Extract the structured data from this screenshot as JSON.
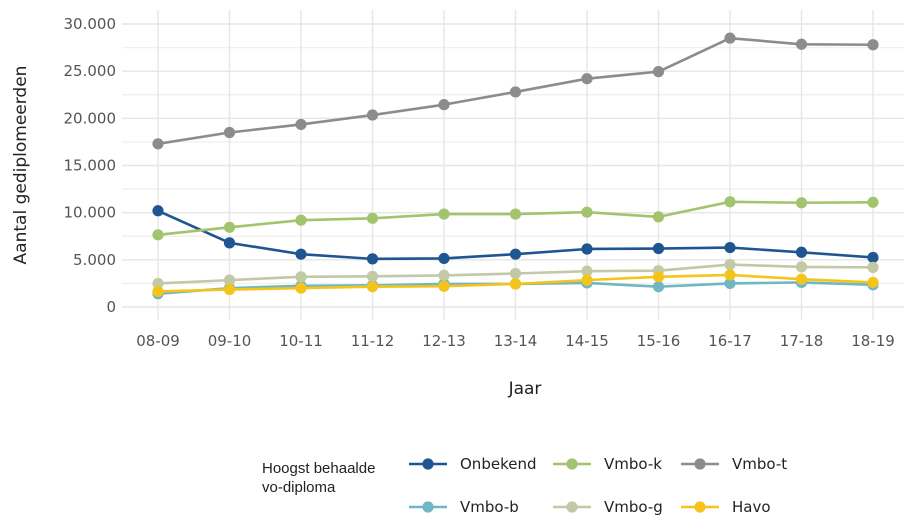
{
  "chart_data": {
    "type": "line",
    "title": "",
    "xlabel": "Jaar",
    "ylabel": "Aantal gediplomeerden",
    "categories": [
      "08-09",
      "09-10",
      "10-11",
      "11-12",
      "12-13",
      "13-14",
      "14-15",
      "15-16",
      "16-17",
      "17-18",
      "18-19"
    ],
    "ylim": [
      0,
      30000
    ],
    "yticks": [
      0,
      5000,
      10000,
      15000,
      20000,
      25000,
      30000
    ],
    "ytick_labels": [
      "0",
      "5.000",
      "10.000",
      "15.000",
      "20.000",
      "25.000",
      "30.000"
    ],
    "grid": true,
    "legend": {
      "title_lines": [
        "Hoogst behaalde",
        "vo-diploma"
      ],
      "placement": "bottom"
    },
    "series": [
      {
        "name": "Onbekend",
        "color": "#1f5591",
        "values": [
          10200,
          6800,
          5600,
          5100,
          5150,
          5600,
          6150,
          6200,
          6300,
          5800,
          5250
        ]
      },
      {
        "name": "Vmbo-k",
        "color": "#a3c46e",
        "values": [
          7650,
          8450,
          9200,
          9400,
          9850,
          9850,
          10050,
          9550,
          11150,
          11050,
          11100
        ]
      },
      {
        "name": "Vmbo-t",
        "color": "#8c8c8c",
        "values": [
          17300,
          18500,
          19350,
          20350,
          21450,
          22800,
          24200,
          24950,
          28500,
          27850,
          27800
        ]
      },
      {
        "name": "Vmbo-b",
        "color": "#6fb7c4",
        "values": [
          1400,
          2000,
          2250,
          2300,
          2450,
          2450,
          2550,
          2150,
          2500,
          2600,
          2350
        ]
      },
      {
        "name": "Vmbo-g",
        "color": "#c2c9a6",
        "values": [
          2500,
          2850,
          3200,
          3250,
          3350,
          3550,
          3800,
          3850,
          4500,
          4250,
          4200
        ]
      },
      {
        "name": "Havo",
        "color": "#f5c41a",
        "values": [
          1650,
          1850,
          2000,
          2150,
          2200,
          2450,
          2850,
          3200,
          3400,
          2950,
          2600
        ]
      }
    ]
  }
}
